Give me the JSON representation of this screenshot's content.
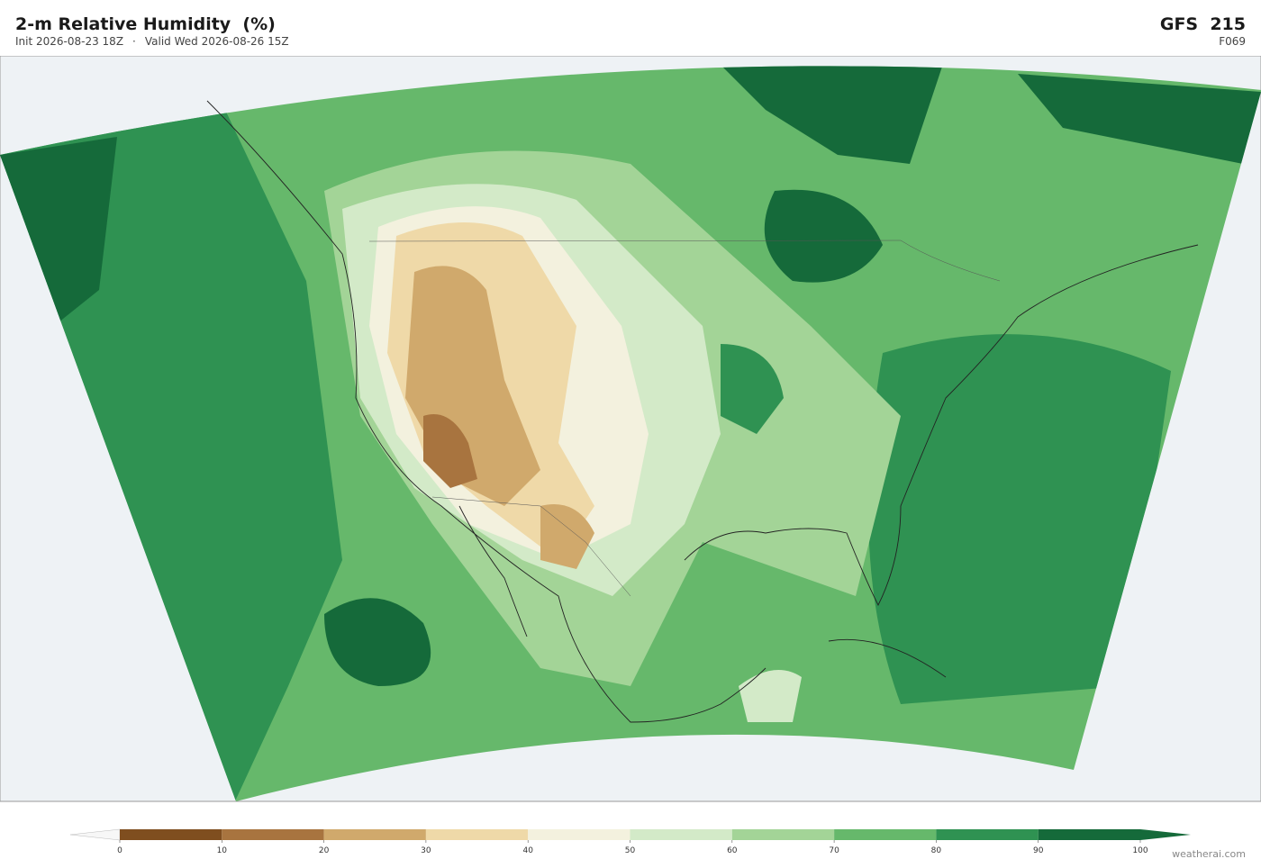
{
  "header": {
    "title": "2-m Relative Humidity  (%)",
    "init": "Init 2026-08-23 18Z",
    "separator": "·",
    "valid": "Valid Wed 2026-08-26 15Z",
    "model": "GFS  215",
    "forecast_hour": "F069"
  },
  "colorbar": {
    "ticks": [
      0,
      10,
      20,
      30,
      40,
      50,
      60,
      70,
      80,
      90,
      100
    ],
    "colors": [
      "#7f4e1f",
      "#a8743f",
      "#d0a96c",
      "#efd9a8",
      "#f3f1de",
      "#d3eac8",
      "#a3d497",
      "#66b86b",
      "#2f9252",
      "#156a3a"
    ],
    "under": "#f7f7f7",
    "over": "#156a3a"
  },
  "credit": "weatherai.com"
}
